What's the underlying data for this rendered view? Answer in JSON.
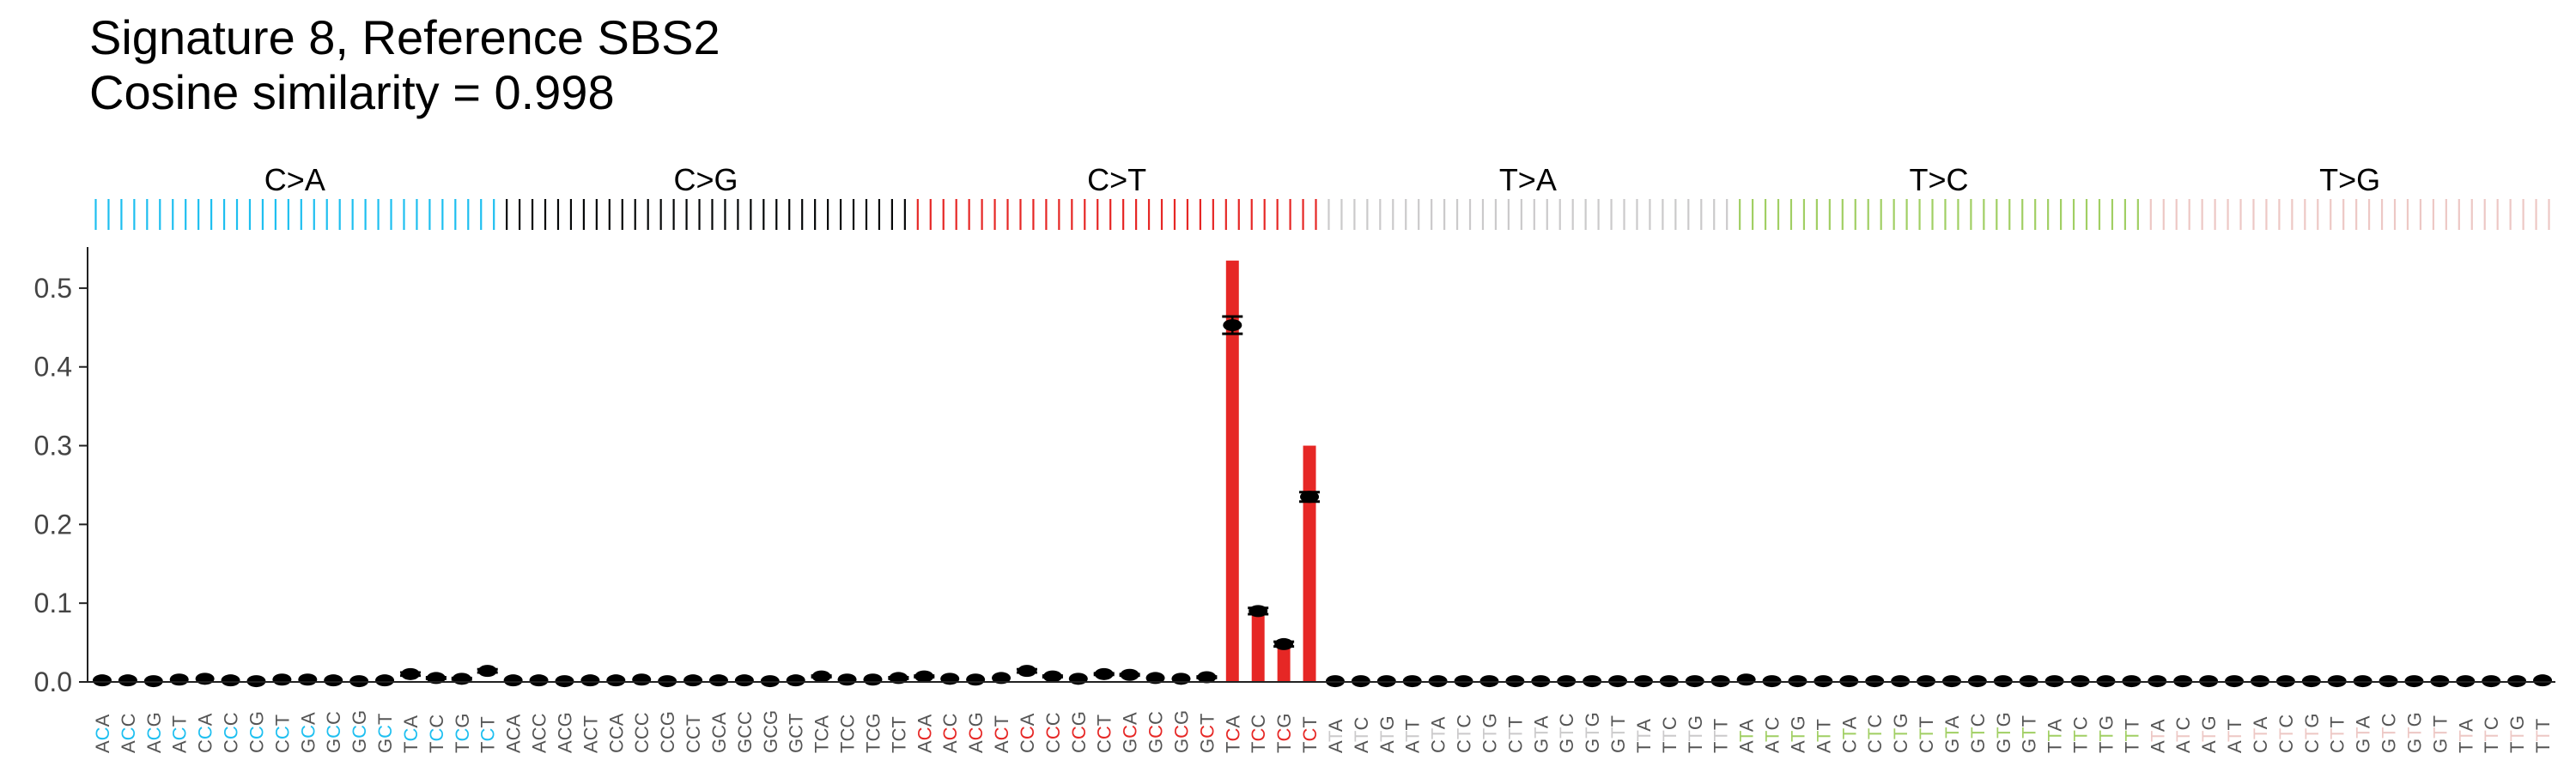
{
  "chart_data": {
    "type": "bar",
    "title": "Signature 8, Reference SBS2",
    "subtitle": "Cosine similarity = 0.998",
    "xlabel": "",
    "ylabel": "",
    "ylim": [
      0,
      0.55
    ],
    "yticks": [
      "0.0",
      "0.1",
      "0.2",
      "0.3",
      "0.4",
      "0.5"
    ],
    "grid": false,
    "legend": "none",
    "groups": [
      {
        "name": "C>A",
        "color": "#1ebff0",
        "contexts": [
          "ACA",
          "ACC",
          "ACG",
          "ACT",
          "CCA",
          "CCC",
          "CCG",
          "CCT",
          "GCA",
          "GCC",
          "GCG",
          "GCT",
          "TCA",
          "TCC",
          "TCG",
          "TCT"
        ]
      },
      {
        "name": "C>G",
        "color": "#050708",
        "contexts": [
          "ACA",
          "ACC",
          "ACG",
          "ACT",
          "CCA",
          "CCC",
          "CCG",
          "CCT",
          "GCA",
          "GCC",
          "GCG",
          "GCT",
          "TCA",
          "TCC",
          "TCG",
          "TCT"
        ]
      },
      {
        "name": "C>T",
        "color": "#e62725",
        "contexts": [
          "ACA",
          "ACC",
          "ACG",
          "ACT",
          "CCA",
          "CCC",
          "CCG",
          "CCT",
          "GCA",
          "GCC",
          "GCG",
          "GCT",
          "TCA",
          "TCC",
          "TCG",
          "TCT"
        ]
      },
      {
        "name": "T>A",
        "color": "#cbcacb",
        "contexts": [
          "ATA",
          "ATC",
          "ATG",
          "ATT",
          "CTA",
          "CTC",
          "CTG",
          "CTT",
          "GTA",
          "GTC",
          "GTG",
          "GTT",
          "TTA",
          "TTC",
          "TTG",
          "TTT"
        ]
      },
      {
        "name": "T>C",
        "color": "#a1cf64",
        "contexts": [
          "ATA",
          "ATC",
          "ATG",
          "ATT",
          "CTA",
          "CTC",
          "CTG",
          "CTT",
          "GTA",
          "GTC",
          "GTG",
          "GTT",
          "TTA",
          "TTC",
          "TTG",
          "TTT"
        ]
      },
      {
        "name": "T>G",
        "color": "#edc8c5",
        "contexts": [
          "ATA",
          "ATC",
          "ATG",
          "ATT",
          "CTA",
          "CTC",
          "CTG",
          "CTT",
          "GTA",
          "GTC",
          "GTG",
          "GTT",
          "TTA",
          "TTC",
          "TTG",
          "TTT"
        ]
      }
    ],
    "reference_values": [
      0,
      0,
      0,
      0,
      0,
      0,
      0,
      0,
      0,
      0,
      0,
      0,
      0,
      0,
      0,
      0,
      0,
      0,
      0,
      0,
      0,
      0,
      0,
      0,
      0,
      0,
      0,
      0,
      0,
      0,
      0,
      0,
      0,
      0,
      0,
      0,
      0,
      0,
      0,
      0,
      0,
      0,
      0,
      0,
      0.535,
      0.09,
      0.048,
      0.3,
      0,
      0,
      0,
      0,
      0,
      0,
      0,
      0,
      0,
      0,
      0,
      0,
      0,
      0,
      0,
      0,
      0,
      0,
      0,
      0,
      0,
      0,
      0,
      0,
      0,
      0,
      0,
      0,
      0,
      0,
      0,
      0,
      0,
      0,
      0,
      0,
      0,
      0,
      0,
      0,
      0,
      0,
      0,
      0,
      0,
      0,
      0,
      0
    ],
    "signature_values": [
      0.002,
      0.002,
      0.001,
      0.003,
      0.004,
      0.002,
      0.001,
      0.003,
      0.003,
      0.002,
      0.001,
      0.002,
      0.01,
      0.005,
      0.004,
      0.014,
      0.002,
      0.002,
      0.001,
      0.002,
      0.002,
      0.003,
      0.001,
      0.002,
      0.002,
      0.002,
      0.001,
      0.002,
      0.007,
      0.003,
      0.003,
      0.005,
      0.007,
      0.004,
      0.003,
      0.005,
      0.014,
      0.007,
      0.004,
      0.01,
      0.009,
      0.005,
      0.004,
      0.006,
      0.453,
      0.09,
      0.048,
      0.235,
      0.001,
      0.001,
      0.001,
      0.001,
      0.001,
      0.001,
      0.001,
      0.001,
      0.001,
      0.001,
      0.001,
      0.001,
      0.001,
      0.001,
      0.001,
      0.001,
      0.003,
      0.001,
      0.001,
      0.001,
      0.001,
      0.001,
      0.001,
      0.001,
      0.001,
      0.001,
      0.001,
      0.001,
      0.001,
      0.001,
      0.001,
      0.001,
      0.001,
      0.001,
      0.001,
      0.001,
      0.001,
      0.001,
      0.001,
      0.001,
      0.001,
      0.001,
      0.001,
      0.001,
      0.001,
      0.001,
      0.001,
      0.002
    ],
    "signature_ci": [
      [
        0.002,
        0.002
      ],
      [
        0.002,
        0.002
      ],
      [
        0.001,
        0.001
      ],
      [
        0.003,
        0.003
      ],
      [
        0.004,
        0.004
      ],
      [
        0.002,
        0.002
      ],
      [
        0.001,
        0.001
      ],
      [
        0.003,
        0.003
      ],
      [
        0.003,
        0.003
      ],
      [
        0.002,
        0.002
      ],
      [
        0.001,
        0.001
      ],
      [
        0.002,
        0.002
      ],
      [
        0.008,
        0.012
      ],
      [
        0.004,
        0.006
      ],
      [
        0.003,
        0.005
      ],
      [
        0.012,
        0.016
      ],
      [
        0.002,
        0.002
      ],
      [
        0.002,
        0.002
      ],
      [
        0.001,
        0.001
      ],
      [
        0.002,
        0.002
      ],
      [
        0.002,
        0.002
      ],
      [
        0.003,
        0.003
      ],
      [
        0.001,
        0.001
      ],
      [
        0.002,
        0.002
      ],
      [
        0.002,
        0.002
      ],
      [
        0.002,
        0.002
      ],
      [
        0.001,
        0.001
      ],
      [
        0.002,
        0.002
      ],
      [
        0.006,
        0.008
      ],
      [
        0.003,
        0.003
      ],
      [
        0.003,
        0.003
      ],
      [
        0.004,
        0.006
      ],
      [
        0.006,
        0.008
      ],
      [
        0.004,
        0.004
      ],
      [
        0.003,
        0.003
      ],
      [
        0.005,
        0.005
      ],
      [
        0.012,
        0.016
      ],
      [
        0.006,
        0.008
      ],
      [
        0.004,
        0.004
      ],
      [
        0.009,
        0.011
      ],
      [
        0.008,
        0.01
      ],
      [
        0.005,
        0.005
      ],
      [
        0.004,
        0.004
      ],
      [
        0.005,
        0.007
      ],
      [
        0.442,
        0.464
      ],
      [
        0.086,
        0.094
      ],
      [
        0.045,
        0.051
      ],
      [
        0.229,
        0.241
      ],
      [
        0.001,
        0.001
      ],
      [
        0.001,
        0.001
      ],
      [
        0.001,
        0.001
      ],
      [
        0.001,
        0.001
      ],
      [
        0.001,
        0.001
      ],
      [
        0.001,
        0.001
      ],
      [
        0.001,
        0.001
      ],
      [
        0.001,
        0.001
      ],
      [
        0.001,
        0.001
      ],
      [
        0.001,
        0.001
      ],
      [
        0.001,
        0.001
      ],
      [
        0.001,
        0.001
      ],
      [
        0.001,
        0.001
      ],
      [
        0.001,
        0.001
      ],
      [
        0.001,
        0.001
      ],
      [
        0.001,
        0.001
      ],
      [
        0.003,
        0.003
      ],
      [
        0.001,
        0.001
      ],
      [
        0.001,
        0.001
      ],
      [
        0.001,
        0.001
      ],
      [
        0.001,
        0.001
      ],
      [
        0.001,
        0.001
      ],
      [
        0.001,
        0.001
      ],
      [
        0.001,
        0.001
      ],
      [
        0.001,
        0.001
      ],
      [
        0.001,
        0.001
      ],
      [
        0.001,
        0.001
      ],
      [
        0.001,
        0.001
      ],
      [
        0.001,
        0.001
      ],
      [
        0.001,
        0.001
      ],
      [
        0.001,
        0.001
      ],
      [
        0.001,
        0.001
      ],
      [
        0.001,
        0.001
      ],
      [
        0.001,
        0.001
      ],
      [
        0.001,
        0.001
      ],
      [
        0.001,
        0.001
      ],
      [
        0.001,
        0.001
      ],
      [
        0.001,
        0.001
      ],
      [
        0.001,
        0.001
      ],
      [
        0.001,
        0.001
      ],
      [
        0.001,
        0.001
      ],
      [
        0.001,
        0.001
      ],
      [
        0.001,
        0.001
      ],
      [
        0.001,
        0.001
      ],
      [
        0.001,
        0.001
      ],
      [
        0.001,
        0.001
      ],
      [
        0.001,
        0.001
      ],
      [
        0.002,
        0.002
      ]
    ]
  }
}
